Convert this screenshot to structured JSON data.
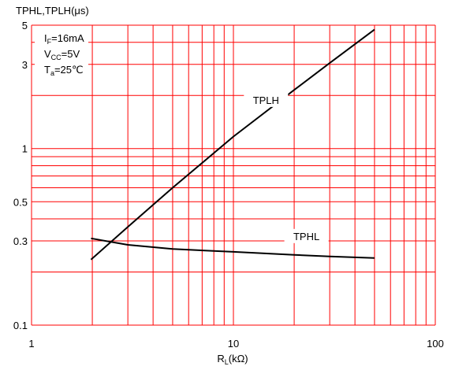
{
  "chart_data": {
    "type": "line",
    "x_scale": "log",
    "y_scale": "log",
    "xlim": [
      1,
      100
    ],
    "ylim": [
      0.1,
      5
    ],
    "xlabel": "R",
    "xlabel_sub": "L",
    "xlabel_unit": "(kΩ)",
    "ylabel": "TPHL,TPLH(μs)",
    "x_ticks": [
      {
        "value": 1,
        "label": "1"
      },
      {
        "value": 10,
        "label": "10"
      },
      {
        "value": 100,
        "label": "100"
      }
    ],
    "y_ticks": [
      {
        "value": 0.1,
        "label": "0.1"
      },
      {
        "value": 0.3,
        "label": "0.3"
      },
      {
        "value": 0.5,
        "label": "0.5"
      },
      {
        "value": 1,
        "label": "1"
      },
      {
        "value": 3,
        "label": "3"
      },
      {
        "value": 5,
        "label": "5"
      }
    ],
    "x_gridlines": [
      1,
      2,
      3,
      4,
      5,
      6,
      7,
      8,
      9,
      10,
      20,
      30,
      40,
      50,
      60,
      70,
      80,
      90,
      100
    ],
    "y_gridlines": [
      0.1,
      0.2,
      0.3,
      0.4,
      0.5,
      0.6,
      0.7,
      0.8,
      0.9,
      1,
      2,
      3,
      4,
      5
    ],
    "grid": true,
    "grid_color": "#ff0000",
    "line_color": "#000000",
    "conditions": [
      {
        "main": "I",
        "sub": "F",
        "rest": "=16mA"
      },
      {
        "main": "V",
        "sub": "CC",
        "rest": "=5V"
      },
      {
        "main": "T",
        "sub": "a",
        "rest": "=25℃"
      }
    ],
    "series": [
      {
        "name": "TPLH",
        "label_at": {
          "x": 14.5,
          "y": 1.83
        },
        "x": [
          1.97,
          3,
          5,
          10,
          20,
          30,
          50
        ],
        "y": [
          0.235,
          0.36,
          0.6,
          1.17,
          2.15,
          3.05,
          4.72
        ]
      },
      {
        "name": "TPHL",
        "label_at": {
          "x": 23,
          "y": 0.31
        },
        "x": [
          1.97,
          3,
          5,
          10,
          20,
          30,
          50
        ],
        "y": [
          0.31,
          0.285,
          0.27,
          0.26,
          0.25,
          0.245,
          0.24
        ]
      }
    ]
  }
}
